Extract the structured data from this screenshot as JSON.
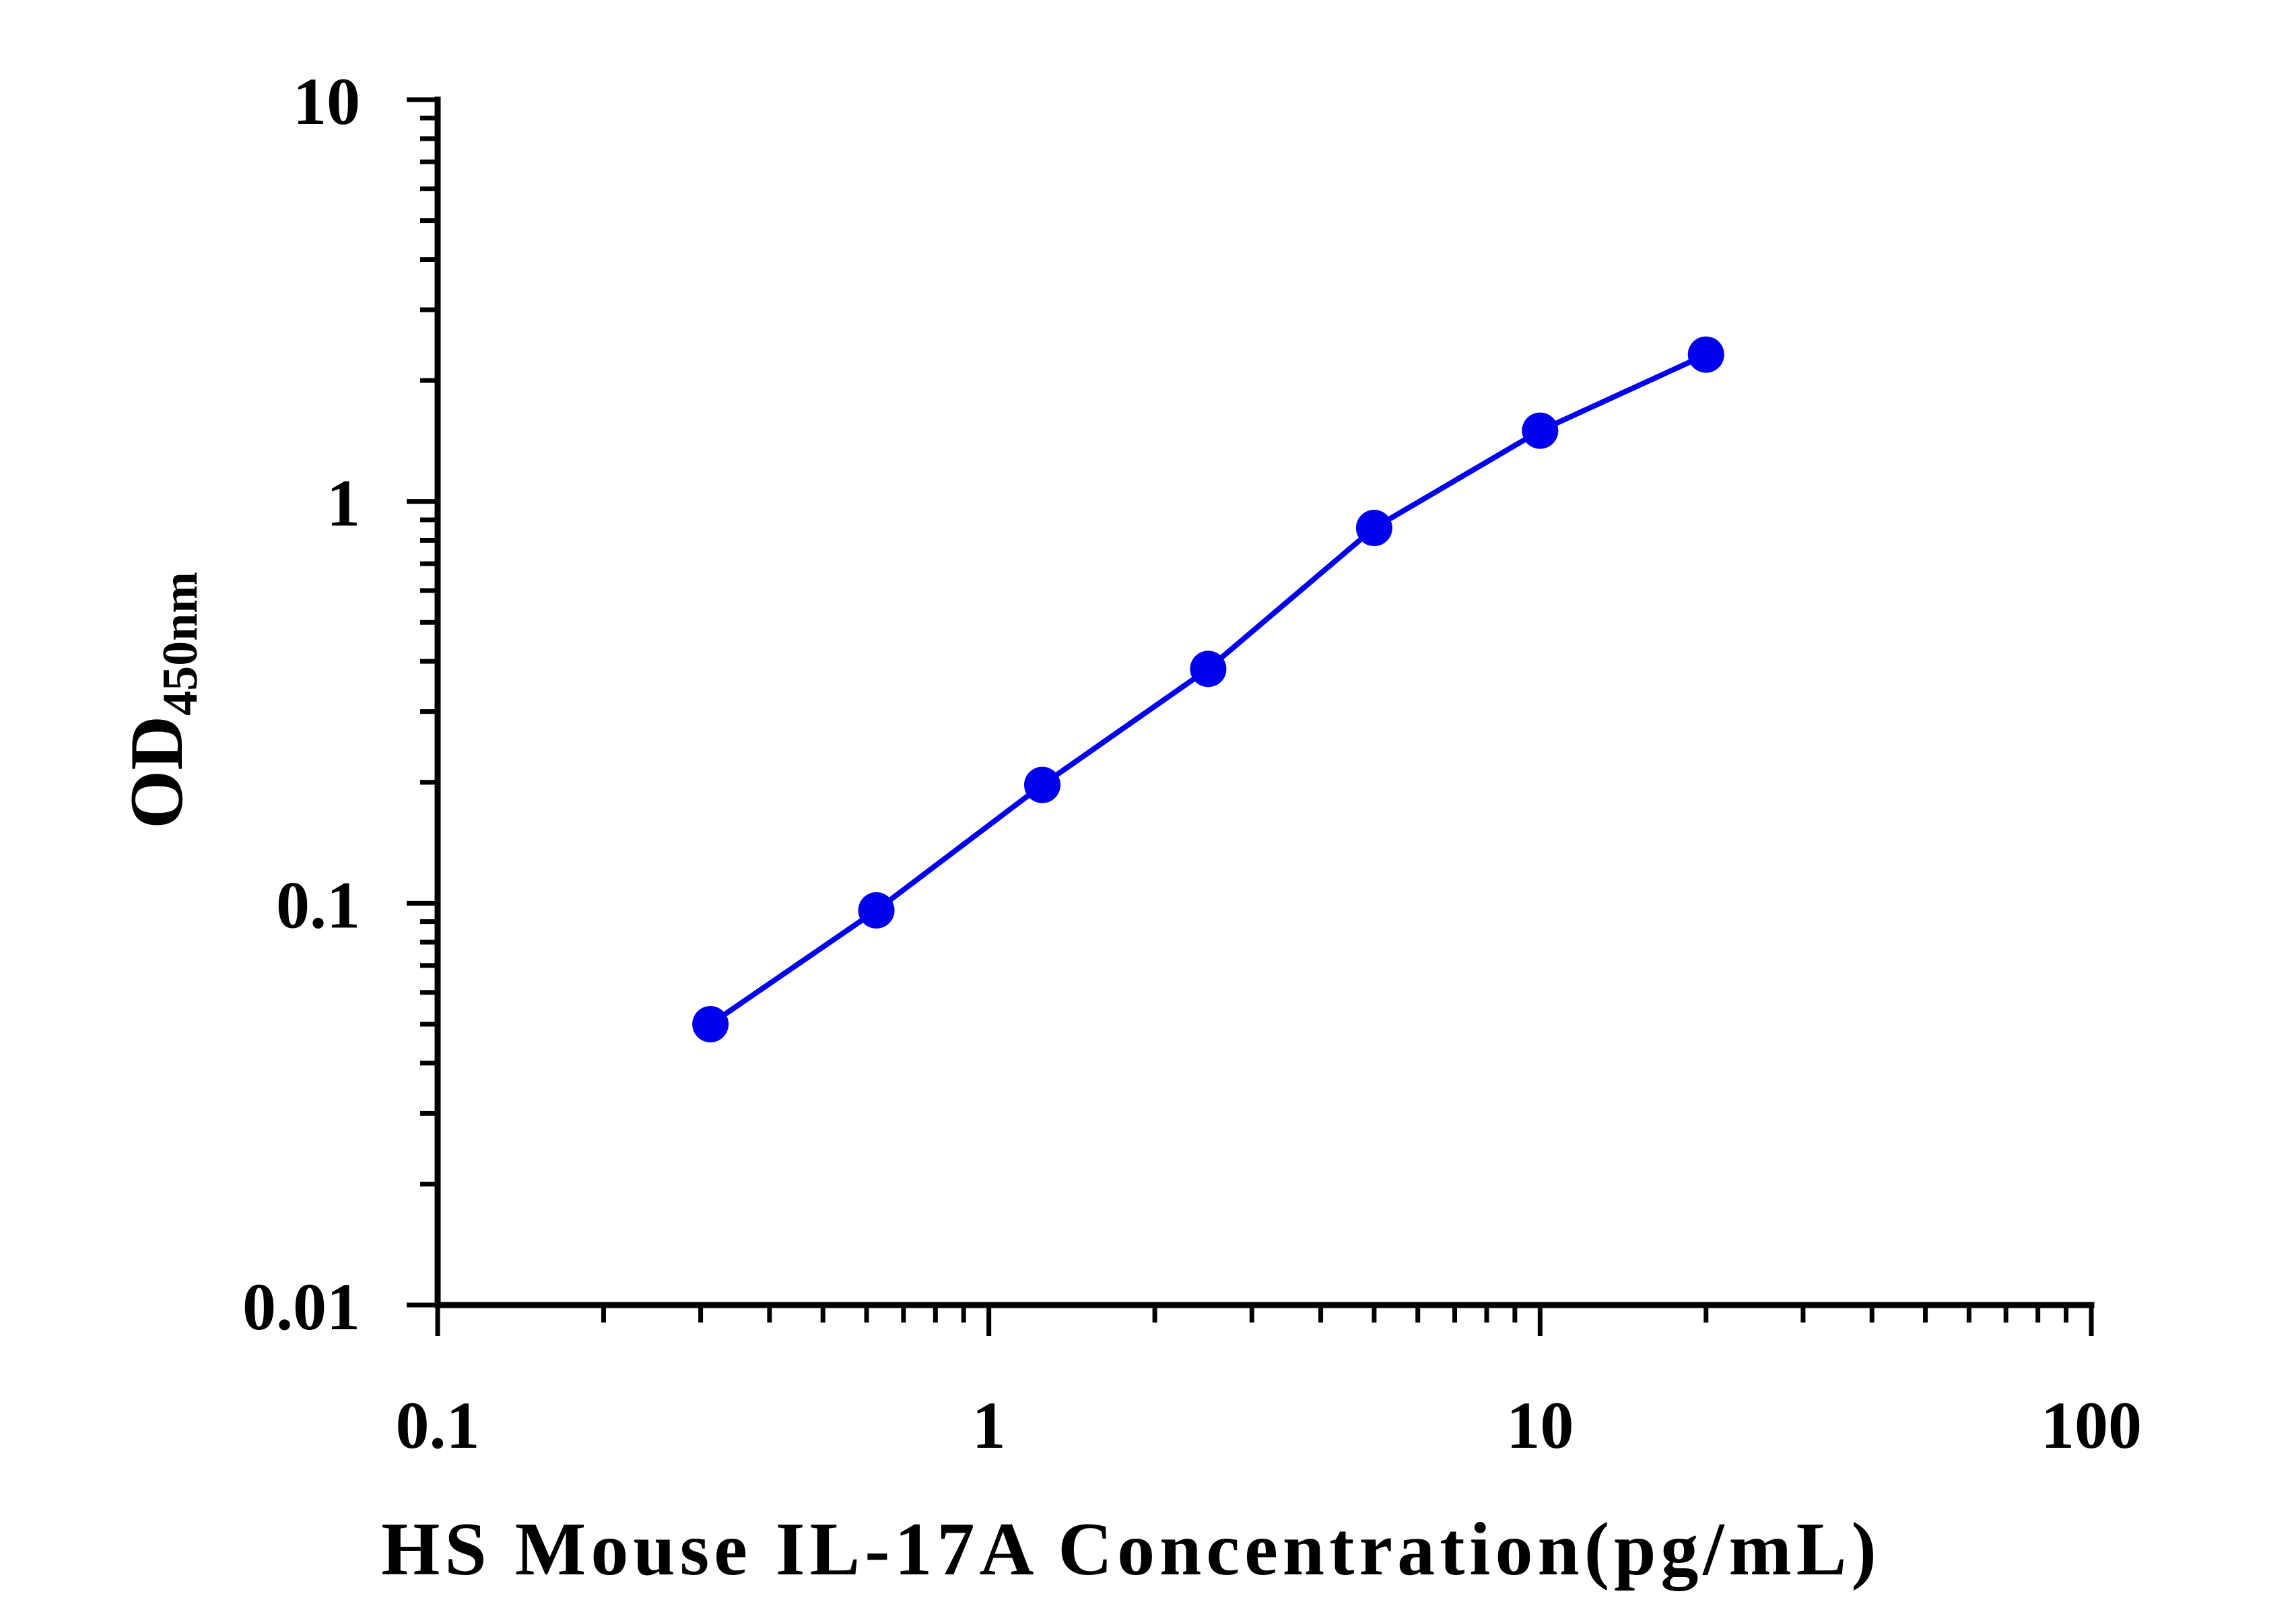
{
  "chart_data": {
    "type": "line",
    "xlabel": "HS Mouse IL-17A Concentration(pg/mL)",
    "ylabel_main": "OD",
    "ylabel_sub": "450nm",
    "xscale": "log",
    "yscale": "log",
    "xlim": [
      0.1,
      100
    ],
    "ylim": [
      0.01,
      10
    ],
    "x_tick_labels": [
      "0.1",
      "1",
      "10",
      "100"
    ],
    "y_tick_labels": [
      "0.01",
      "0.1",
      "1",
      "10"
    ],
    "grid": false,
    "series": [
      {
        "color": "#0000ee",
        "x": [
          0.3125,
          0.625,
          1.25,
          2.5,
          5,
          10,
          20
        ],
        "y": [
          0.05,
          0.096,
          0.197,
          0.383,
          0.859,
          1.5,
          2.32
        ]
      }
    ]
  }
}
